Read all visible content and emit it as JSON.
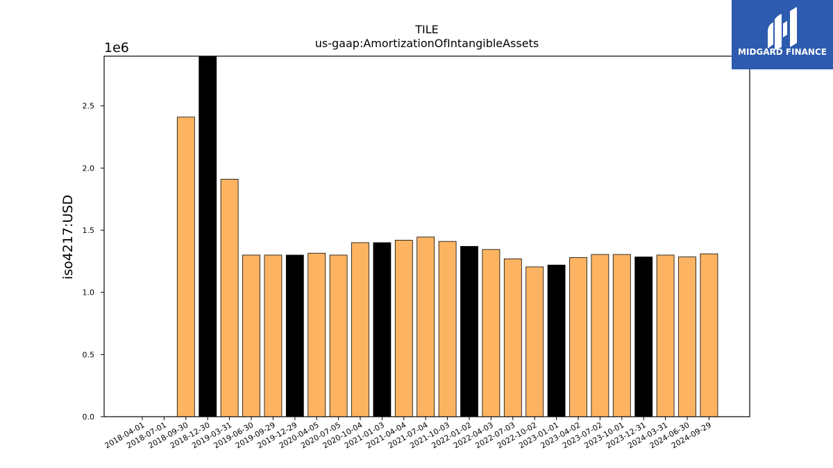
{
  "logo": {
    "brand_text": "MIDGARD FINANCE",
    "icon": "midgard-logo-icon",
    "background": "#2c5bb0"
  },
  "chart_data": {
    "type": "bar",
    "title": "TILE",
    "subtitle": "us-gaap:AmortizationOfIntangibleAssets",
    "ylabel": "iso4217:USD",
    "y_offset_label": "1e6",
    "y_multiplier": 1000000,
    "ylim": [
      0,
      2.9
    ],
    "yticks": [
      "0.0",
      "0.5",
      "1.0",
      "1.5",
      "2.0",
      "2.5"
    ],
    "grid": false,
    "colors": {
      "default": "#fdb462",
      "highlight": "#000000"
    },
    "categories": [
      "2018-04-01",
      "2018-07-01",
      "2018-09-30",
      "2018-12-30",
      "2019-03-31",
      "2019-06-30",
      "2019-09-29",
      "2019-12-29",
      "2020-04-05",
      "2020-07-05",
      "2020-10-04",
      "2021-01-03",
      "2021-04-04",
      "2021-07-04",
      "2021-10-03",
      "2022-01-02",
      "2022-04-03",
      "2022-07-03",
      "2022-10-02",
      "2023-01-01",
      "2023-04-02",
      "2023-07-02",
      "2023-10-01",
      "2023-12-31",
      "2024-03-31",
      "2024-06-30",
      "2024-09-29"
    ],
    "values": [
      null,
      null,
      2.41,
      2.9,
      1.91,
      1.3,
      1.3,
      1.3,
      1.315,
      1.3,
      1.4,
      1.4,
      1.42,
      1.445,
      1.41,
      1.37,
      1.345,
      1.27,
      1.205,
      1.22,
      1.28,
      1.305,
      1.305,
      1.285,
      1.3,
      1.285,
      1.31
    ],
    "highlight": [
      false,
      false,
      false,
      true,
      false,
      false,
      false,
      true,
      false,
      false,
      false,
      true,
      false,
      false,
      false,
      true,
      false,
      false,
      false,
      true,
      false,
      false,
      false,
      true,
      false,
      false,
      false
    ]
  }
}
